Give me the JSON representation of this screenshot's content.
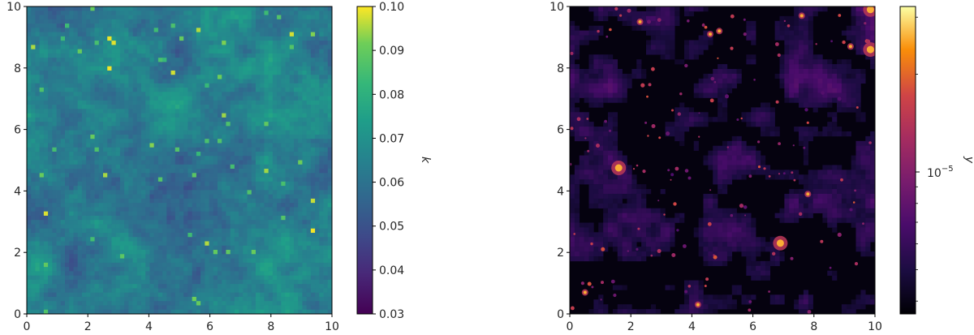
{
  "chart_data": [
    {
      "type": "heatmap",
      "title": "",
      "xlabel": "",
      "ylabel": "",
      "xlim": [
        0,
        10
      ],
      "ylim": [
        0,
        10
      ],
      "x_ticks": [
        "0",
        "2",
        "4",
        "6",
        "8",
        "10"
      ],
      "y_ticks": [
        "0",
        "2",
        "4",
        "6",
        "8",
        "10"
      ],
      "colormap": "viridis",
      "colorbar": {
        "label": "k",
        "range": [
          0.03,
          0.1
        ],
        "scale": "linear",
        "ticks": [
          "0.03",
          "0.04",
          "0.05",
          "0.06",
          "0.07",
          "0.08",
          "0.09",
          "0.10"
        ]
      },
      "field_description": "noisy convergence map, values mostly 0.04-0.06 with scattered bright peaks up to ~0.10"
    },
    {
      "type": "heatmap",
      "title": "",
      "xlabel": "",
      "ylabel": "",
      "xlim": [
        0,
        10
      ],
      "ylim": [
        0,
        10
      ],
      "x_ticks": [
        "0",
        "2",
        "4",
        "6",
        "8",
        "10"
      ],
      "y_ticks": [
        "0",
        "2",
        "4",
        "6",
        "8",
        "10"
      ],
      "colormap": "inferno",
      "colorbar": {
        "label": "y",
        "scale": "log",
        "major_tick_label": "10",
        "major_tick_exponent": "−5"
      },
      "bright_sources": [
        {
          "x": 1.6,
          "y": 4.75
        },
        {
          "x": 6.9,
          "y": 2.3
        },
        {
          "x": 9.85,
          "y": 8.6
        },
        {
          "x": 9.85,
          "y": 9.9
        },
        {
          "x": 4.9,
          "y": 9.2
        },
        {
          "x": 4.6,
          "y": 9.1
        },
        {
          "x": 2.3,
          "y": 9.5
        },
        {
          "x": 7.8,
          "y": 3.9
        },
        {
          "x": 4.2,
          "y": 0.3
        },
        {
          "x": 0.5,
          "y": 0.7
        },
        {
          "x": 9.2,
          "y": 8.7
        },
        {
          "x": 7.6,
          "y": 9.7
        }
      ]
    }
  ]
}
